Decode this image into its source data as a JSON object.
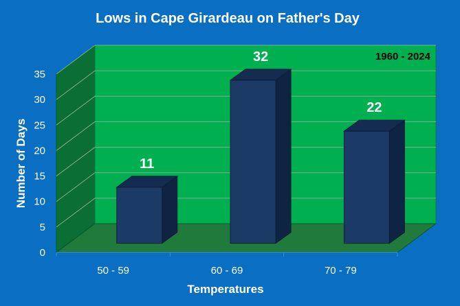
{
  "chart_data": {
    "type": "bar",
    "title": "Lows in Cape Girardeau on Father's Day",
    "annotation": "1960 - 2024",
    "xlabel": "Temperatures",
    "ylabel": "Number of Days",
    "categories": [
      "50 - 59",
      "60 - 69",
      "70 - 79"
    ],
    "values": [
      11,
      32,
      22
    ],
    "data_labels": [
      "11",
      "32",
      "22"
    ],
    "ylim": [
      0,
      35
    ],
    "yticks": [
      "0",
      "5",
      "10",
      "15",
      "20",
      "25",
      "30",
      "35"
    ],
    "grid": true,
    "legend": "none",
    "style": "3d-column"
  },
  "colors": {
    "background": "#0a6fc2",
    "wall": "#00b050",
    "side_wall": "#0b6e35",
    "floor": "#1f7a3c",
    "bar_front": "#1b3a66",
    "bar_top": "#132c4f",
    "bar_side": "#0f2442",
    "grid": "#7fb08a",
    "text": "#ffffff"
  }
}
